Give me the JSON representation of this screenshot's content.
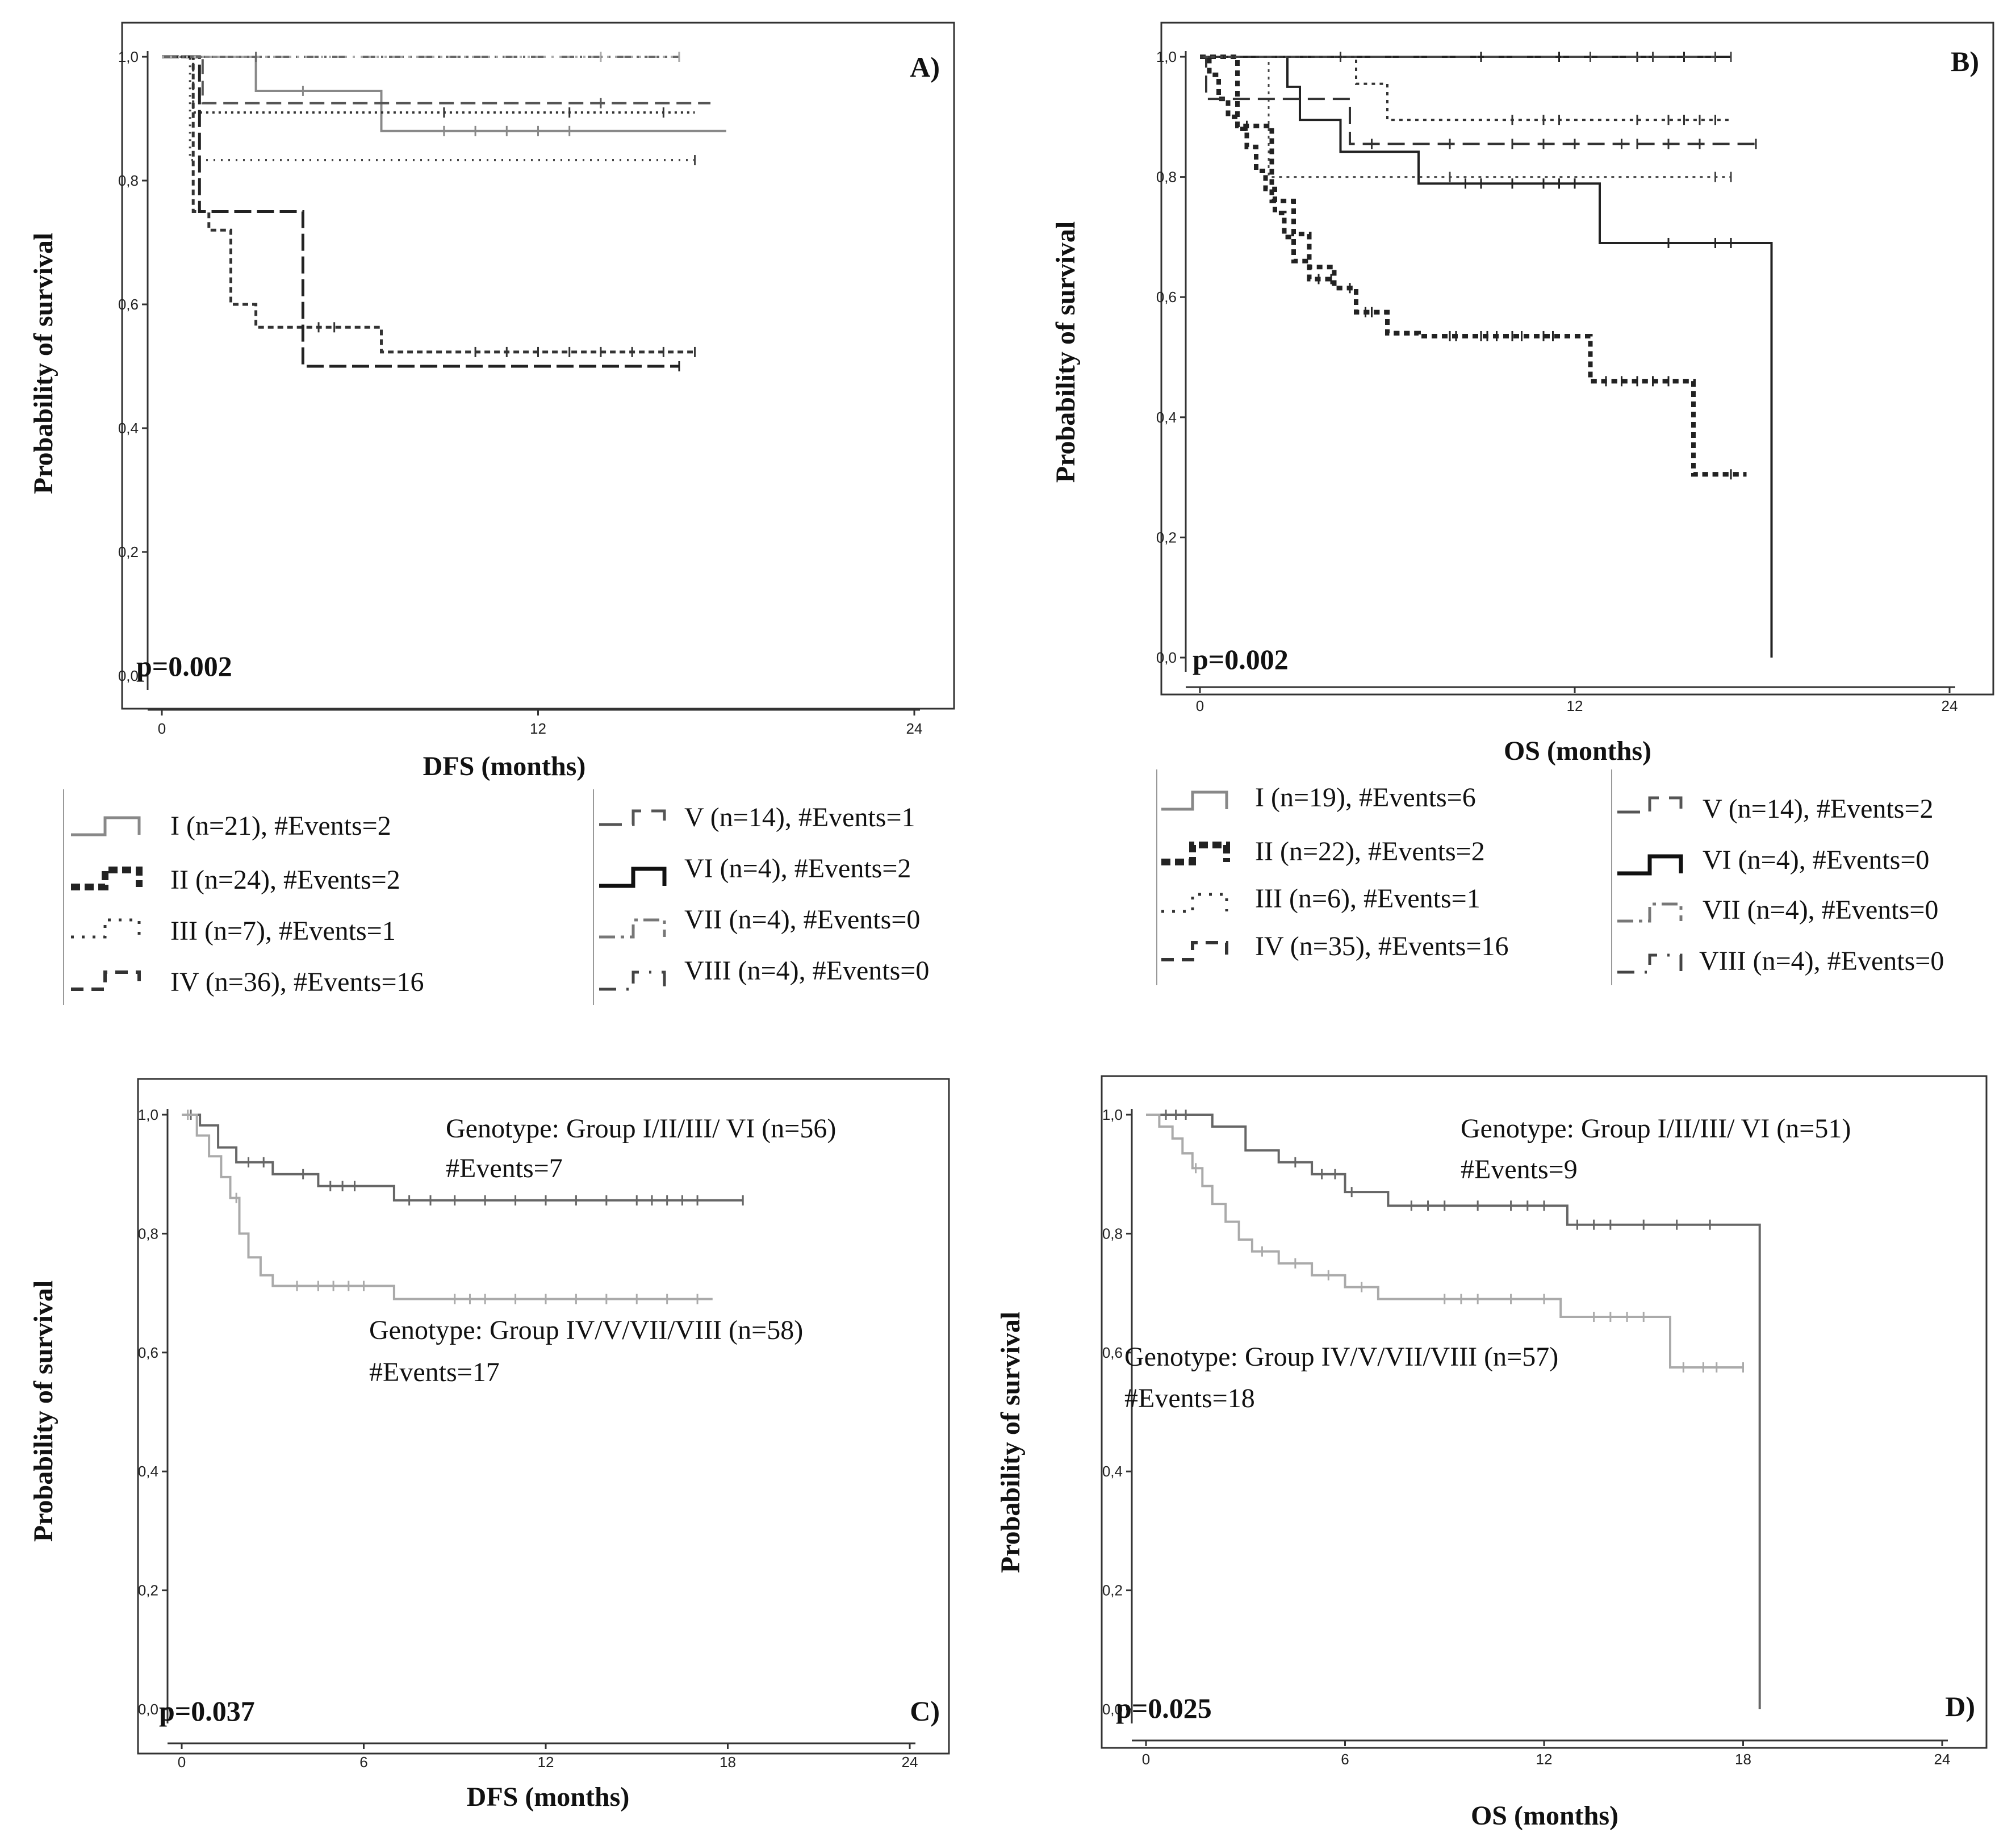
{
  "figure": {
    "panels": [
      {
        "id": "A",
        "label": "A)",
        "p_value": "p=0.002",
        "ylabel": "Probability of survival",
        "xlabel": "DFS (months)",
        "x_ticks": [
          "0",
          "12",
          "24"
        ],
        "y_ticks": [
          "0,0",
          "0,2",
          "0,4",
          "0,6",
          "0,8",
          "1,0"
        ],
        "legend": [
          "I (n=21), #Events=2",
          "II (n=24), #Events=2",
          "III (n=7), #Events=1",
          "IV (n=36), #Events=16",
          "V (n=14), #Events=1",
          "VI (n=4), #Events=2",
          "VII (n=4), #Events=0",
          "VIII (n=4), #Events=0"
        ]
      },
      {
        "id": "B",
        "label": "B)",
        "p_value": "p=0.002",
        "ylabel": "Probability of survival",
        "xlabel": "OS (months)",
        "x_ticks": [
          "0",
          "12",
          "24"
        ],
        "y_ticks": [
          "0,0",
          "0,2",
          "0,4",
          "0,6",
          "0,8",
          "1,0"
        ],
        "legend": [
          "I (n=19), #Events=6",
          "II (n=22), #Events=2",
          "III (n=6), #Events=1",
          "IV (n=35), #Events=16",
          "V (n=14), #Events=2",
          "VI (n=4), #Events=0",
          "VII (n=4), #Events=0",
          "VIII (n=4), #Events=0"
        ]
      },
      {
        "id": "C",
        "label": "C)",
        "p_value": "p=0.037",
        "ylabel": "Probability of survival",
        "xlabel": "DFS (months)",
        "x_ticks": [
          "0",
          "6",
          "12",
          "18",
          "24"
        ],
        "y_ticks": [
          "0,0",
          "0,2",
          "0,4",
          "0,6",
          "0,8",
          "1,0"
        ],
        "annotations": {
          "group1_title": "Genotype: Group I/II/III/ VI (n=56)",
          "group1_events": "#Events=7",
          "group2_title": "Genotype: Group IV/V/VII/VIII (n=58)",
          "group2_events": "#Events=17"
        }
      },
      {
        "id": "D",
        "label": "D)",
        "p_value": "p=0.025",
        "ylabel": "Probability of survival",
        "xlabel": "OS (months)",
        "x_ticks": [
          "0",
          "6",
          "12",
          "18",
          "24"
        ],
        "y_ticks": [
          "0,0",
          "0,2",
          "0,4",
          "0,6",
          "0,8",
          "1,0"
        ],
        "annotations": {
          "group1_title": "Genotype: Group I/II/III/ VI (n=51)",
          "group1_events": "#Events=9",
          "group2_title": "Genotype: Group IV/V/VII/VIII (n=57)",
          "group2_events": "#Events=18"
        }
      }
    ]
  },
  "chart_data": [
    {
      "type": "line",
      "title": "A)",
      "xlabel": "DFS (months)",
      "ylabel": "Probability of survival",
      "xlim": [
        0,
        24
      ],
      "ylim": [
        0,
        1
      ],
      "series": [
        {
          "name": "I (n=21), #Events=2",
          "x": [
            0,
            3,
            3,
            7,
            7,
            18
          ],
          "y": [
            1.0,
            1.0,
            0.945,
            0.945,
            0.88,
            0.88
          ],
          "censored_x": [
            4.5,
            9,
            10,
            11,
            12,
            13
          ]
        },
        {
          "name": "II (n=24), #Events=2",
          "x": [
            0,
            1.0,
            1.0,
            17
          ],
          "y": [
            1.0,
            1.0,
            0.91,
            0.91
          ],
          "censored_x": [
            9,
            13,
            16
          ]
        },
        {
          "name": "III (n=7), #Events=1",
          "x": [
            0,
            0.9,
            0.9,
            17
          ],
          "y": [
            1.0,
            1.0,
            0.833,
            0.833
          ],
          "censored_x": [
            17
          ]
        },
        {
          "name": "IV (n=36), #Events=16",
          "x": [
            0,
            1.0,
            1.0,
            1.5,
            1.5,
            2.2,
            2.2,
            3,
            3,
            7,
            7,
            17
          ],
          "y": [
            1.0,
            1.0,
            0.75,
            0.75,
            0.72,
            0.72,
            0.6,
            0.6,
            0.563,
            0.563,
            0.523,
            0.523
          ],
          "censored_x": [
            5,
            5.5,
            10,
            11,
            12,
            13,
            14,
            15,
            16,
            17
          ]
        },
        {
          "name": "V (n=14), #Events=1",
          "x": [
            0,
            1.3,
            1.3,
            17.5
          ],
          "y": [
            1.0,
            1.0,
            0.925,
            0.925
          ],
          "censored_x": [
            14
          ]
        },
        {
          "name": "VI (n=4), #Events=2",
          "x": [
            0,
            1.2,
            1.2,
            4.5,
            4.5,
            16.5
          ],
          "y": [
            1.0,
            1.0,
            0.75,
            0.75,
            0.5,
            0.5
          ],
          "censored_x": [
            16.5
          ]
        },
        {
          "name": "VII (n=4), #Events=0",
          "x": [
            0,
            16.5
          ],
          "y": [
            1.0,
            1.0
          ],
          "censored_x": [
            3,
            16.5
          ]
        },
        {
          "name": "VIII (n=4), #Events=0",
          "x": [
            0,
            16.5
          ],
          "y": [
            1.0,
            1.0
          ],
          "censored_x": [
            14,
            16.5
          ]
        }
      ]
    },
    {
      "type": "line",
      "title": "B)",
      "xlabel": "OS (months)",
      "ylabel": "Probability of survival",
      "xlim": [
        0,
        24
      ],
      "ylim": [
        0,
        1
      ],
      "series": [
        {
          "name": "I (n=19), #Events=6",
          "x": [
            0,
            2.8,
            2.8,
            3.2,
            3.2,
            4.5,
            4.5,
            7.0,
            7.0,
            12.8,
            12.8,
            18.3,
            18.3
          ],
          "y": [
            1.0,
            1.0,
            0.95,
            0.95,
            0.895,
            0.895,
            0.842,
            0.842,
            0.789,
            0.789,
            0.69,
            0.69,
            0.0
          ],
          "censored_x": [
            8.5,
            9,
            10,
            11,
            11.5,
            12,
            15,
            16.5,
            17
          ]
        },
        {
          "name": "II (n=22), #Events=2",
          "x": [
            0,
            1.2,
            1.2,
            2.3,
            2.3,
            3.0,
            3.0,
            3.5,
            3.5,
            4.3,
            4.3,
            5.0,
            5.0,
            6.0,
            6.0,
            7.0,
            7.0,
            12.5,
            12.5,
            15.8,
            15.8,
            17.5
          ],
          "y": [
            1.0,
            1.0,
            0.885,
            0.885,
            0.76,
            0.76,
            0.705,
            0.705,
            0.65,
            0.65,
            0.615,
            0.615,
            0.575,
            0.575,
            0.54,
            0.54,
            0.535,
            0.535,
            0.46,
            0.46,
            0.305,
            0.305
          ],
          "censored_x": [
            1.5,
            4.8,
            5.3,
            8,
            9,
            9.5,
            10,
            11,
            13.5,
            14,
            14.5,
            17
          ]
        },
        {
          "name": "III (n=6), #Events=1",
          "x": [
            0,
            2.2,
            2.2,
            17
          ],
          "y": [
            1.0,
            1.0,
            0.8,
            0.8
          ],
          "censored_x": [
            8,
            16.5,
            17
          ]
        },
        {
          "name": "IV (n=35), #Events=16",
          "x": [
            0,
            0.3,
            0.3,
            0.6,
            0.6,
            0.9,
            0.9,
            1.2,
            1.2,
            1.5,
            1.5,
            1.8,
            1.8,
            2.1,
            2.1,
            2.4,
            2.4,
            2.7,
            2.7,
            3.0,
            3.0,
            3.5,
            3.5,
            4.3,
            4.3,
            5.0,
            5.0,
            6.0,
            6.0,
            7.0,
            7.0,
            12.5,
            12.5,
            15.8,
            15.8,
            17.5
          ],
          "y": [
            1.0,
            1.0,
            0.97,
            0.97,
            0.93,
            0.93,
            0.9,
            0.9,
            0.88,
            0.88,
            0.85,
            0.85,
            0.81,
            0.81,
            0.78,
            0.78,
            0.74,
            0.74,
            0.7,
            0.7,
            0.66,
            0.66,
            0.63,
            0.63,
            0.615,
            0.615,
            0.575,
            0.575,
            0.54,
            0.54,
            0.535,
            0.535,
            0.46,
            0.46,
            0.305,
            0.305
          ],
          "censored_x": [
            3.8,
            4.2,
            5.5,
            8.2,
            9.2,
            10.3,
            11.3,
            13,
            15
          ]
        },
        {
          "name": "V (n=14), #Events=2",
          "x": [
            0,
            0.2,
            0.2,
            1.7,
            1.7,
            4.8,
            4.8,
            17.8
          ],
          "y": [
            1.0,
            1.0,
            0.93,
            0.93,
            0.93,
            0.93,
            0.855,
            0.855
          ],
          "censored_x": [
            5.5,
            8,
            10,
            11,
            12,
            13.5,
            14,
            15,
            16,
            17.8
          ]
        },
        {
          "name": "VI (n=4), #Events=0",
          "x": [
            0,
            17
          ],
          "y": [
            1.0,
            1.0
          ],
          "censored_x": [
            9,
            11.5,
            14,
            15.5
          ]
        },
        {
          "name": "VII (n=4), #Events=0",
          "x": [
            0,
            16.5
          ],
          "y": [
            1.0,
            1.0
          ],
          "censored_x": [
            12.5,
            14.5,
            16.5,
            17
          ]
        },
        {
          "name": "VIII (n=4), #Events=0",
          "x": [
            0,
            5,
            5,
            6,
            6,
            17
          ],
          "y": [
            1.0,
            1.0,
            0.955,
            0.955,
            0.895,
            0.895
          ],
          "censored_x": [
            4.5,
            10,
            11,
            11.5,
            14,
            15,
            15.5,
            16,
            16.5
          ]
        }
      ]
    },
    {
      "type": "line",
      "title": "C)",
      "xlabel": "DFS (months)",
      "ylabel": "Probability of survival",
      "xlim": [
        0,
        24
      ],
      "ylim": [
        0,
        1
      ],
      "series": [
        {
          "name": "Genotype: Group I/II/III/ VI (n=56)",
          "x": [
            0,
            0.6,
            0.6,
            1.2,
            1.2,
            1.8,
            1.8,
            3.0,
            3.0,
            4.5,
            4.5,
            6.0,
            6.0,
            7.0,
            7.0,
            18.5
          ],
          "y": [
            1.0,
            1.0,
            0.982,
            0.982,
            0.945,
            0.945,
            0.92,
            0.92,
            0.9,
            0.9,
            0.88,
            0.88,
            0.88,
            0.88,
            0.856,
            0.856
          ],
          "censored_x": [
            0.3,
            2.2,
            2.7,
            4.0,
            4.9,
            5.3,
            5.7,
            7.5,
            8.2,
            9,
            10,
            11,
            12,
            13,
            14,
            15,
            15.5,
            16,
            16.5,
            17,
            18.5
          ]
        },
        {
          "name": "Genotype: Group IV/V/VII/VIII (n=58)",
          "x": [
            0,
            0.5,
            0.5,
            0.9,
            0.9,
            1.3,
            1.3,
            1.6,
            1.6,
            1.9,
            1.9,
            2.2,
            2.2,
            2.6,
            2.6,
            3.0,
            3.0,
            7.0,
            7.0,
            17.5
          ],
          "y": [
            1.0,
            1.0,
            0.965,
            0.965,
            0.93,
            0.93,
            0.895,
            0.895,
            0.86,
            0.86,
            0.8,
            0.8,
            0.76,
            0.76,
            0.73,
            0.73,
            0.712,
            0.712,
            0.69,
            0.69
          ],
          "censored_x": [
            0.2,
            1.8,
            3.8,
            4.5,
            5,
            5.5,
            6,
            9,
            9.5,
            10,
            11,
            12,
            13,
            14,
            15,
            16,
            17
          ]
        }
      ]
    },
    {
      "type": "line",
      "title": "D)",
      "xlabel": "OS (months)",
      "ylabel": "Probability of survival",
      "xlim": [
        0,
        24
      ],
      "ylim": [
        0,
        1
      ],
      "series": [
        {
          "name": "Genotype: Group I/II/III/ VI (n=51)",
          "x": [
            0,
            2.0,
            2.0,
            3.0,
            3.0,
            4.0,
            4.0,
            5.0,
            5.0,
            6.0,
            6.0,
            7.3,
            7.3,
            12.7,
            12.7,
            18.5,
            18.5
          ],
          "y": [
            1.0,
            1.0,
            0.98,
            0.98,
            0.94,
            0.94,
            0.92,
            0.92,
            0.9,
            0.9,
            0.87,
            0.87,
            0.847,
            0.847,
            0.815,
            0.815,
            0.0
          ],
          "censored_x": [
            0.6,
            0.9,
            1.2,
            4.5,
            5.3,
            5.7,
            6.2,
            8,
            8.5,
            9,
            10,
            11,
            11.5,
            12,
            13,
            13.5,
            14,
            15,
            16,
            17
          ]
        },
        {
          "name": "Genotype: Group IV/V/VII/VIII (n=57)",
          "x": [
            0,
            0.4,
            0.4,
            0.8,
            0.8,
            1.1,
            1.1,
            1.4,
            1.4,
            1.7,
            1.7,
            2.0,
            2.0,
            2.4,
            2.4,
            2.8,
            2.8,
            3.2,
            3.2,
            4.0,
            4.0,
            5.0,
            5.0,
            6.0,
            6.0,
            7.0,
            7.0,
            12.5,
            12.5,
            15.8,
            15.8,
            18.0
          ],
          "y": [
            1.0,
            1.0,
            0.98,
            0.98,
            0.96,
            0.96,
            0.935,
            0.935,
            0.91,
            0.91,
            0.88,
            0.88,
            0.85,
            0.85,
            0.82,
            0.82,
            0.79,
            0.79,
            0.77,
            0.77,
            0.75,
            0.75,
            0.73,
            0.73,
            0.71,
            0.71,
            0.69,
            0.69,
            0.66,
            0.66,
            0.575,
            0.575
          ],
          "censored_x": [
            1.5,
            3.5,
            4.5,
            5.5,
            6.5,
            9,
            9.5,
            10,
            11,
            12,
            13.5,
            14,
            14.5,
            15,
            16.2,
            16.8,
            17.2,
            18
          ]
        }
      ]
    }
  ]
}
